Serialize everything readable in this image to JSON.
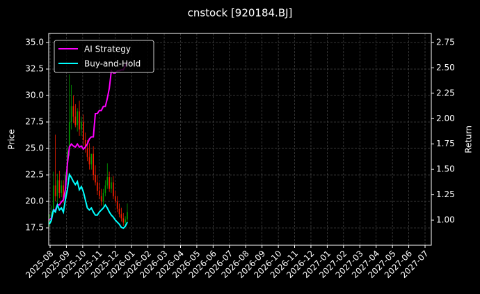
{
  "chart_data": {
    "type": "candlestick",
    "title": "cnstock [920184.BJ]",
    "ylabel": "Price",
    "y2label": "Return",
    "ylim": [
      15.86,
      35.86
    ],
    "yticks": [
      17.5,
      {
        "value": 20,
        "label": "20.0"
      },
      22.5,
      {
        "value": 25,
        "label": "25.0"
      },
      27.5,
      {
        "value": 30,
        "label": "30.0"
      },
      32.5,
      {
        "value": 35,
        "label": "35.0"
      }
    ],
    "y2lim": [
      0.753,
      2.839
    ],
    "y2ticks": [
      {
        "value": 1,
        "label": "1.00"
      },
      1.25,
      {
        "value": 1.5,
        "label": "1.50"
      },
      1.75,
      {
        "value": 2,
        "label": "2.00"
      },
      2.25,
      {
        "value": 2.5,
        "label": "2.50"
      },
      2.75
    ],
    "xticks": [
      "2025-08",
      "2025-09",
      "2025-10",
      "2025-11",
      "2025-12",
      "2026-01",
      "2026-02",
      "2026-03",
      "2026-04",
      "2026-05",
      "2026-06",
      "2026-07",
      "2026-08",
      "2026-09",
      "2026-10",
      "2026-11",
      "2026-12",
      "2027-01",
      "2027-02",
      "2027-03",
      "2027-04",
      "2027-05",
      "2027-06",
      "2027-07"
    ],
    "candles": {
      "up_color": "#00a000",
      "down_color": "#ff2000",
      "open": [
        18.0,
        18.3,
        19.0,
        21.5,
        20.5,
        22.0,
        20.8,
        21.5,
        20.2,
        22.5,
        24.8,
        27.5,
        29.0,
        28.0,
        27.2,
        28.5,
        26.8,
        27.5,
        25.8,
        25.0,
        24.2,
        23.5,
        24.5,
        22.5,
        21.8,
        21.0,
        20.5,
        20.0,
        20.8,
        21.5,
        22.3,
        21.2,
        21.8,
        20.5,
        20.0,
        19.3,
        18.8,
        18.4,
        18.0,
        18.3
      ],
      "high": [
        18.8,
        19.6,
        22.8,
        26.3,
        22.6,
        22.9,
        22.0,
        22.0,
        22.8,
        25.2,
        32.0,
        31.0,
        30.0,
        29.2,
        28.8,
        29.5,
        28.0,
        28.2,
        26.5,
        25.8,
        25.5,
        24.2,
        25.2,
        23.4,
        22.5,
        21.8,
        21.2,
        21.2,
        22.0,
        23.6,
        22.8,
        22.3,
        22.4,
        21.0,
        20.5,
        19.8,
        19.4,
        18.9,
        18.6,
        19.8
      ],
      "low": [
        17.6,
        18.0,
        18.8,
        20.0,
        19.8,
        20.3,
        20.4,
        19.8,
        19.9,
        22.0,
        24.3,
        26.8,
        27.4,
        27.0,
        26.6,
        26.2,
        26.2,
        25.3,
        24.6,
        23.8,
        23.0,
        23.0,
        22.0,
        21.5,
        20.6,
        20.2,
        19.6,
        19.6,
        20.5,
        21.2,
        20.9,
        20.8,
        20.2,
        19.8,
        19.0,
        18.5,
        18.1,
        17.7,
        17.6,
        18.0
      ],
      "close": [
        18.3,
        19.0,
        21.5,
        20.5,
        22.0,
        20.8,
        21.5,
        20.2,
        22.5,
        24.8,
        27.5,
        29.0,
        28.0,
        27.2,
        28.5,
        26.8,
        27.5,
        25.8,
        25.0,
        24.2,
        23.5,
        24.5,
        22.5,
        21.8,
        21.0,
        20.5,
        20.0,
        20.8,
        21.5,
        22.3,
        21.2,
        21.8,
        20.5,
        20.0,
        19.3,
        18.8,
        18.4,
        18.0,
        18.3,
        19.0
      ]
    },
    "series": [
      {
        "name": "AI Strategy",
        "color": "#ff00ff",
        "axis": "y2",
        "values": [
          1.0,
          1.02,
          1.1,
          1.1,
          1.15,
          1.15,
          1.18,
          1.2,
          1.3,
          1.55,
          1.72,
          1.75,
          1.73,
          1.72,
          1.75,
          1.72,
          1.73,
          1.7,
          1.72,
          1.75,
          1.8,
          1.82,
          1.82,
          2.05,
          2.05,
          2.08,
          2.08,
          2.12,
          2.12,
          2.2,
          2.3,
          2.47,
          2.45,
          2.45,
          2.47,
          2.47,
          2.48,
          2.48,
          2.52,
          2.56
        ]
      },
      {
        "name": "Buy-and-Hold",
        "color": "#00ffff",
        "axis": "y2",
        "values": [
          0.96,
          1.0,
          1.1,
          1.08,
          1.15,
          1.1,
          1.12,
          1.08,
          1.2,
          1.3,
          1.45,
          1.42,
          1.38,
          1.35,
          1.38,
          1.3,
          1.33,
          1.28,
          1.2,
          1.12,
          1.1,
          1.12,
          1.08,
          1.05,
          1.05,
          1.08,
          1.1,
          1.12,
          1.15,
          1.12,
          1.08,
          1.05,
          1.03,
          1.0,
          0.98,
          0.96,
          0.93,
          0.92,
          0.94,
          0.98
        ]
      }
    ],
    "legend": "upper left",
    "grid": true
  }
}
